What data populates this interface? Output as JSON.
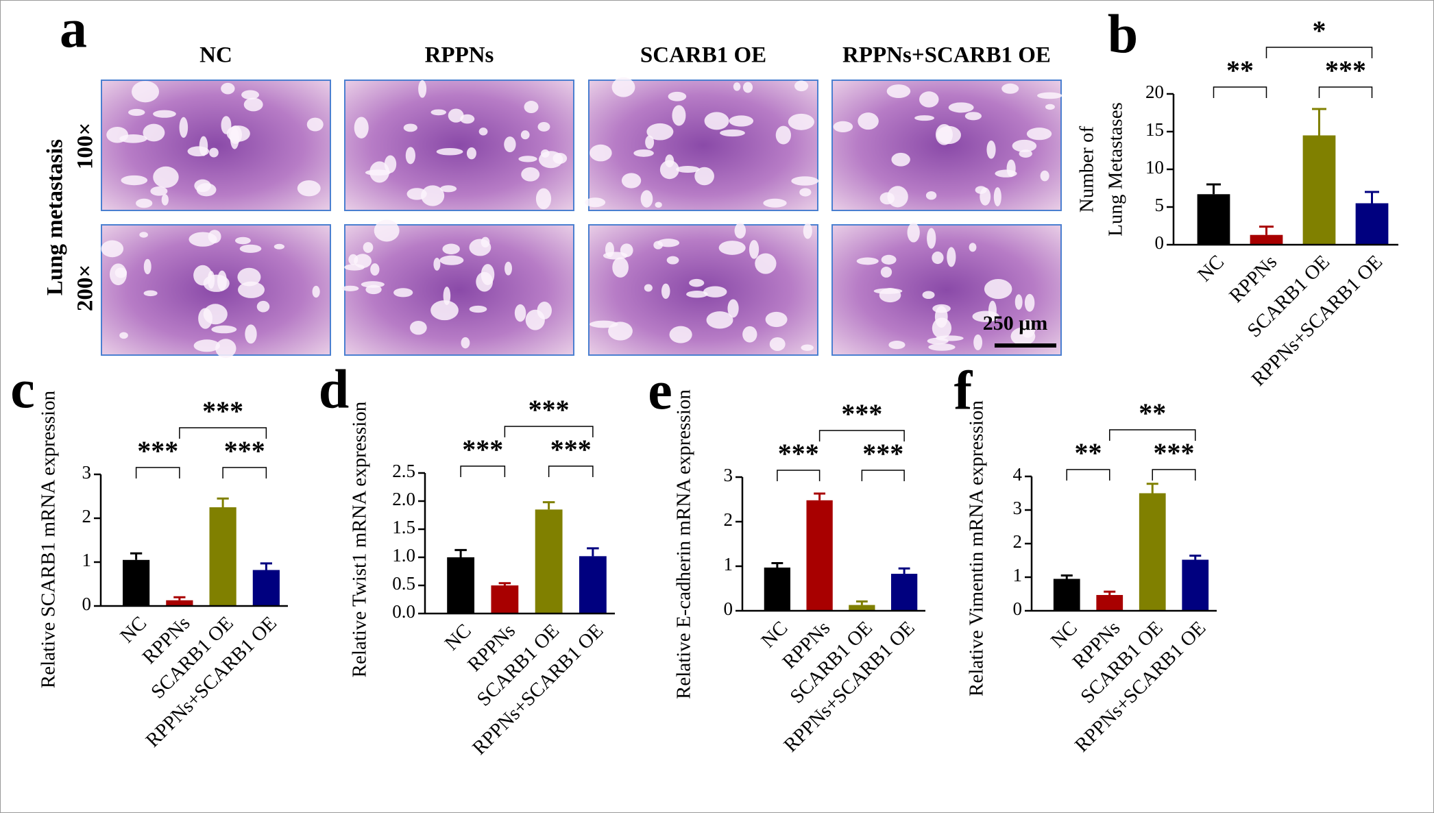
{
  "panel_a": {
    "label": "a",
    "columns": [
      "NC",
      "RPPNs",
      "SCARB1 OE",
      "RPPNs+SCARB1 OE"
    ],
    "row_group": "Lung metastasis",
    "rows": [
      "100×",
      "200×"
    ],
    "scale_bar": "250 μm"
  },
  "chart_data": [
    {
      "type": "bar",
      "label": "b",
      "ylabel": [
        "Number of",
        "Lung Metastases"
      ],
      "categories": [
        "NC",
        "RPPNs",
        "SCARB1 OE",
        "RPPNs+SCARB1 OE"
      ],
      "values": [
        6.7,
        1.3,
        14.5,
        5.5
      ],
      "errors": [
        1.3,
        1.1,
        3.5,
        1.5
      ],
      "colors": [
        "#000000",
        "#a80000",
        "#808000",
        "#00007f"
      ],
      "ylim": [
        0,
        20
      ],
      "yticks": [
        0,
        5,
        10,
        15,
        20
      ],
      "annotations": [
        {
          "text": "**",
          "groups": [
            0,
            1
          ]
        },
        {
          "text": "*",
          "groups": [
            1,
            3
          ]
        },
        {
          "text": "***",
          "groups": [
            2,
            3
          ]
        }
      ]
    },
    {
      "type": "bar",
      "label": "c",
      "ylabel": [
        "Relative SCARB1 mRNA expression"
      ],
      "categories": [
        "NC",
        "RPPNs",
        "SCARB1 OE",
        "RPPNs+SCARB1 OE"
      ],
      "values": [
        1.05,
        0.13,
        2.25,
        0.82
      ],
      "errors": [
        0.15,
        0.07,
        0.2,
        0.15
      ],
      "colors": [
        "#000000",
        "#a80000",
        "#808000",
        "#00007f"
      ],
      "ylim": [
        0,
        3
      ],
      "yticks": [
        0,
        1,
        2,
        3
      ],
      "annotations": [
        {
          "text": "***",
          "groups": [
            0,
            1
          ]
        },
        {
          "text": "***",
          "groups": [
            1,
            3
          ]
        },
        {
          "text": "***",
          "groups": [
            2,
            3
          ]
        }
      ]
    },
    {
      "type": "bar",
      "label": "d",
      "ylabel": [
        "Relative Twist1 mRNA expression"
      ],
      "categories": [
        "NC",
        "RPPNs",
        "SCARB1 OE",
        "RPPNs+SCARB1 OE"
      ],
      "values": [
        1.0,
        0.5,
        1.85,
        1.02
      ],
      "errors": [
        0.13,
        0.04,
        0.13,
        0.14
      ],
      "colors": [
        "#000000",
        "#a80000",
        "#808000",
        "#00007f"
      ],
      "ylim": [
        0,
        2.5
      ],
      "yticks": [
        {
          "value": 0,
          "label": "0.0"
        },
        0.5,
        {
          "value": 1,
          "label": "1.0"
        },
        1.5,
        {
          "value": 2,
          "label": "2.0"
        },
        2.5
      ],
      "annotations": [
        {
          "text": "***",
          "groups": [
            0,
            1
          ]
        },
        {
          "text": "***",
          "groups": [
            1,
            3
          ]
        },
        {
          "text": "***",
          "groups": [
            2,
            3
          ]
        }
      ]
    },
    {
      "type": "bar",
      "label": "e",
      "ylabel": [
        "Relative E-cadherin mRNA expression"
      ],
      "categories": [
        "NC",
        "RPPNs",
        "SCARB1 OE",
        "RPPNs+SCARB1 OE"
      ],
      "values": [
        0.97,
        2.48,
        0.13,
        0.83
      ],
      "errors": [
        0.1,
        0.15,
        0.08,
        0.12
      ],
      "colors": [
        "#000000",
        "#a80000",
        "#808000",
        "#00007f"
      ],
      "ylim": [
        0,
        3
      ],
      "yticks": [
        0,
        1,
        2,
        3
      ],
      "annotations": [
        {
          "text": "***",
          "groups": [
            0,
            1
          ]
        },
        {
          "text": "***",
          "groups": [
            1,
            3
          ]
        },
        {
          "text": "***",
          "groups": [
            2,
            3
          ]
        }
      ]
    },
    {
      "type": "bar",
      "label": "f",
      "ylabel": [
        "Relative Vimentin mRNA expression"
      ],
      "categories": [
        "NC",
        "RPPNs",
        "SCARB1 OE",
        "RPPNs+SCARB1 OE"
      ],
      "values": [
        0.95,
        0.47,
        3.5,
        1.52
      ],
      "errors": [
        0.1,
        0.1,
        0.28,
        0.12
      ],
      "colors": [
        "#000000",
        "#a80000",
        "#808000",
        "#00007f"
      ],
      "ylim": [
        0,
        4
      ],
      "yticks": [
        0,
        1,
        2,
        3,
        4
      ],
      "annotations": [
        {
          "text": "**",
          "groups": [
            0,
            1
          ]
        },
        {
          "text": "**",
          "groups": [
            1,
            3
          ]
        },
        {
          "text": "***",
          "groups": [
            2,
            3
          ]
        }
      ]
    }
  ]
}
